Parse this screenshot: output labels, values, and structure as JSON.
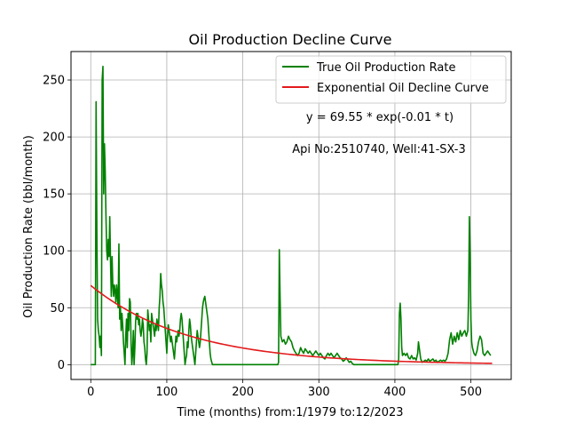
{
  "chart_data": {
    "type": "line",
    "title": "Oil Production Decline Curve",
    "xlabel": "Time (months) from:1/1979 to:12/2023",
    "ylabel": "Oil Production Rate (bbl/month)",
    "xlim": [
      -26,
      553
    ],
    "ylim": [
      -13,
      275
    ],
    "xticks": [
      0,
      100,
      200,
      300,
      400,
      500
    ],
    "yticks": [
      0,
      50,
      100,
      150,
      200,
      250
    ],
    "grid": true,
    "legend_position": "top-right",
    "annotations": [
      "y = 69.55 * exp(-0.01 * t)",
      "Api No:2510740, Well:41-SX-3"
    ],
    "series": [
      {
        "name": "True Oil Production Rate",
        "color": "#008000",
        "points": [
          [
            0,
            0
          ],
          [
            4,
            0
          ],
          [
            6,
            0
          ],
          [
            7,
            231
          ],
          [
            8,
            120
          ],
          [
            9,
            40
          ],
          [
            10,
            30
          ],
          [
            11,
            25
          ],
          [
            12,
            15
          ],
          [
            13,
            25
          ],
          [
            14,
            8
          ],
          [
            15,
            250
          ],
          [
            16,
            262
          ],
          [
            17,
            150
          ],
          [
            18,
            194
          ],
          [
            19,
            170
          ],
          [
            20,
            130
          ],
          [
            21,
            100
          ],
          [
            22,
            92
          ],
          [
            23,
            110
          ],
          [
            24,
            95
          ],
          [
            25,
            130
          ],
          [
            26,
            90
          ],
          [
            27,
            60
          ],
          [
            28,
            95
          ],
          [
            29,
            70
          ],
          [
            30,
            60
          ],
          [
            31,
            70
          ],
          [
            32,
            65
          ],
          [
            33,
            55
          ],
          [
            34,
            70
          ],
          [
            35,
            60
          ],
          [
            36,
            50
          ],
          [
            37,
            106
          ],
          [
            38,
            40
          ],
          [
            39,
            50
          ],
          [
            40,
            30
          ],
          [
            41,
            45
          ],
          [
            42,
            35
          ],
          [
            43,
            20
          ],
          [
            44,
            10
          ],
          [
            45,
            0
          ],
          [
            46,
            25
          ],
          [
            47,
            40
          ],
          [
            48,
            15
          ],
          [
            49,
            45
          ],
          [
            50,
            30
          ],
          [
            51,
            58
          ],
          [
            52,
            55
          ],
          [
            53,
            20
          ],
          [
            54,
            0
          ],
          [
            55,
            10
          ],
          [
            56,
            30
          ],
          [
            57,
            0
          ],
          [
            58,
            15
          ],
          [
            59,
            38
          ],
          [
            60,
            45
          ],
          [
            61,
            40
          ],
          [
            62,
            45
          ],
          [
            63,
            35
          ],
          [
            64,
            40
          ],
          [
            65,
            30
          ],
          [
            66,
            25
          ],
          [
            67,
            30
          ],
          [
            68,
            40
          ],
          [
            69,
            35
          ],
          [
            70,
            20
          ],
          [
            71,
            15
          ],
          [
            72,
            5
          ],
          [
            73,
            0
          ],
          [
            74,
            10
          ],
          [
            75,
            48
          ],
          [
            76,
            40
          ],
          [
            77,
            30
          ],
          [
            78,
            35
          ],
          [
            79,
            20
          ],
          [
            80,
            45
          ],
          [
            81,
            40
          ],
          [
            82,
            35
          ],
          [
            83,
            30
          ],
          [
            84,
            25
          ],
          [
            85,
            35
          ],
          [
            86,
            30
          ],
          [
            87,
            40
          ],
          [
            88,
            35
          ],
          [
            89,
            30
          ],
          [
            90,
            50
          ],
          [
            91,
            60
          ],
          [
            92,
            80
          ],
          [
            93,
            70
          ],
          [
            94,
            65
          ],
          [
            95,
            55
          ],
          [
            96,
            50
          ],
          [
            97,
            40
          ],
          [
            98,
            30
          ],
          [
            99,
            20
          ],
          [
            100,
            10
          ],
          [
            101,
            25
          ],
          [
            102,
            35
          ],
          [
            103,
            30
          ],
          [
            104,
            25
          ],
          [
            105,
            20
          ],
          [
            106,
            25
          ],
          [
            107,
            20
          ],
          [
            108,
            15
          ],
          [
            109,
            10
          ],
          [
            110,
            5
          ],
          [
            111,
            15
          ],
          [
            112,
            25
          ],
          [
            113,
            20
          ],
          [
            114,
            25
          ],
          [
            115,
            30
          ],
          [
            116,
            25
          ],
          [
            117,
            30
          ],
          [
            118,
            40
          ],
          [
            119,
            45
          ],
          [
            120,
            40
          ],
          [
            121,
            30
          ],
          [
            122,
            20
          ],
          [
            123,
            10
          ],
          [
            124,
            0
          ],
          [
            125,
            5
          ],
          [
            126,
            8
          ],
          [
            127,
            20
          ],
          [
            128,
            15
          ],
          [
            129,
            30
          ],
          [
            130,
            40
          ],
          [
            131,
            35
          ],
          [
            132,
            25
          ],
          [
            133,
            20
          ],
          [
            134,
            15
          ],
          [
            135,
            10
          ],
          [
            136,
            5
          ],
          [
            137,
            0
          ],
          [
            138,
            10
          ],
          [
            139,
            20
          ],
          [
            140,
            30
          ],
          [
            141,
            25
          ],
          [
            142,
            20
          ],
          [
            143,
            15
          ],
          [
            144,
            20
          ],
          [
            145,
            30
          ],
          [
            146,
            40
          ],
          [
            147,
            50
          ],
          [
            148,
            55
          ],
          [
            149,
            58
          ],
          [
            150,
            60
          ],
          [
            151,
            55
          ],
          [
            152,
            50
          ],
          [
            153,
            45
          ],
          [
            154,
            40
          ],
          [
            155,
            30
          ],
          [
            156,
            20
          ],
          [
            157,
            10
          ],
          [
            158,
            5
          ],
          [
            160,
            0
          ],
          [
            190,
            0
          ],
          [
            220,
            0
          ],
          [
            246,
            0
          ],
          [
            247,
            2
          ],
          [
            248,
            101
          ],
          [
            249,
            60
          ],
          [
            250,
            25
          ],
          [
            252,
            20
          ],
          [
            254,
            22
          ],
          [
            256,
            18
          ],
          [
            258,
            20
          ],
          [
            260,
            25
          ],
          [
            262,
            22
          ],
          [
            264,
            20
          ],
          [
            266,
            15
          ],
          [
            268,
            12
          ],
          [
            270,
            10
          ],
          [
            272,
            8
          ],
          [
            274,
            10
          ],
          [
            276,
            15
          ],
          [
            278,
            12
          ],
          [
            280,
            10
          ],
          [
            282,
            14
          ],
          [
            284,
            12
          ],
          [
            286,
            10
          ],
          [
            288,
            12
          ],
          [
            290,
            10
          ],
          [
            292,
            8
          ],
          [
            294,
            10
          ],
          [
            296,
            12
          ],
          [
            298,
            10
          ],
          [
            300,
            8
          ],
          [
            302,
            10
          ],
          [
            304,
            8
          ],
          [
            306,
            6
          ],
          [
            308,
            5
          ],
          [
            310,
            8
          ],
          [
            312,
            10
          ],
          [
            314,
            8
          ],
          [
            316,
            10
          ],
          [
            318,
            8
          ],
          [
            320,
            6
          ],
          [
            322,
            8
          ],
          [
            324,
            10
          ],
          [
            326,
            8
          ],
          [
            328,
            6
          ],
          [
            330,
            5
          ],
          [
            332,
            3
          ],
          [
            334,
            4
          ],
          [
            336,
            6
          ],
          [
            338,
            4
          ],
          [
            340,
            2
          ],
          [
            342,
            3
          ],
          [
            344,
            1
          ],
          [
            346,
            0
          ],
          [
            350,
            0
          ],
          [
            380,
            0
          ],
          [
            404,
            0
          ],
          [
            405,
            5
          ],
          [
            406,
            45
          ],
          [
            407,
            54
          ],
          [
            408,
            40
          ],
          [
            409,
            15
          ],
          [
            410,
            8
          ],
          [
            412,
            10
          ],
          [
            414,
            8
          ],
          [
            416,
            10
          ],
          [
            418,
            6
          ],
          [
            420,
            5
          ],
          [
            422,
            8
          ],
          [
            424,
            5
          ],
          [
            426,
            6
          ],
          [
            428,
            4
          ],
          [
            430,
            10
          ],
          [
            431,
            20
          ],
          [
            432,
            15
          ],
          [
            433,
            10
          ],
          [
            434,
            5
          ],
          [
            436,
            2
          ],
          [
            438,
            3
          ],
          [
            440,
            4
          ],
          [
            442,
            3
          ],
          [
            444,
            5
          ],
          [
            446,
            3
          ],
          [
            448,
            4
          ],
          [
            450,
            5
          ],
          [
            452,
            3
          ],
          [
            454,
            4
          ],
          [
            456,
            2
          ],
          [
            458,
            3
          ],
          [
            460,
            4
          ],
          [
            462,
            3
          ],
          [
            464,
            4
          ],
          [
            466,
            3
          ],
          [
            468,
            5
          ],
          [
            470,
            10
          ],
          [
            472,
            22
          ],
          [
            474,
            28
          ],
          [
            476,
            18
          ],
          [
            478,
            25
          ],
          [
            480,
            20
          ],
          [
            482,
            28
          ],
          [
            484,
            22
          ],
          [
            486,
            30
          ],
          [
            488,
            25
          ],
          [
            490,
            28
          ],
          [
            492,
            30
          ],
          [
            494,
            25
          ],
          [
            496,
            30
          ],
          [
            497,
            60
          ],
          [
            498,
            130
          ],
          [
            499,
            95
          ],
          [
            500,
            40
          ],
          [
            501,
            20
          ],
          [
            502,
            15
          ],
          [
            504,
            10
          ],
          [
            506,
            8
          ],
          [
            508,
            12
          ],
          [
            510,
            20
          ],
          [
            512,
            25
          ],
          [
            514,
            22
          ],
          [
            516,
            10
          ],
          [
            518,
            8
          ],
          [
            520,
            10
          ],
          [
            522,
            12
          ],
          [
            524,
            10
          ],
          [
            526,
            8
          ]
        ]
      },
      {
        "name": "Exponential Oil Decline Curve",
        "color": "#e31a1c",
        "equation": {
          "a": 69.55,
          "b": 0.0078
        },
        "x_range": [
          0,
          528
        ]
      }
    ]
  }
}
